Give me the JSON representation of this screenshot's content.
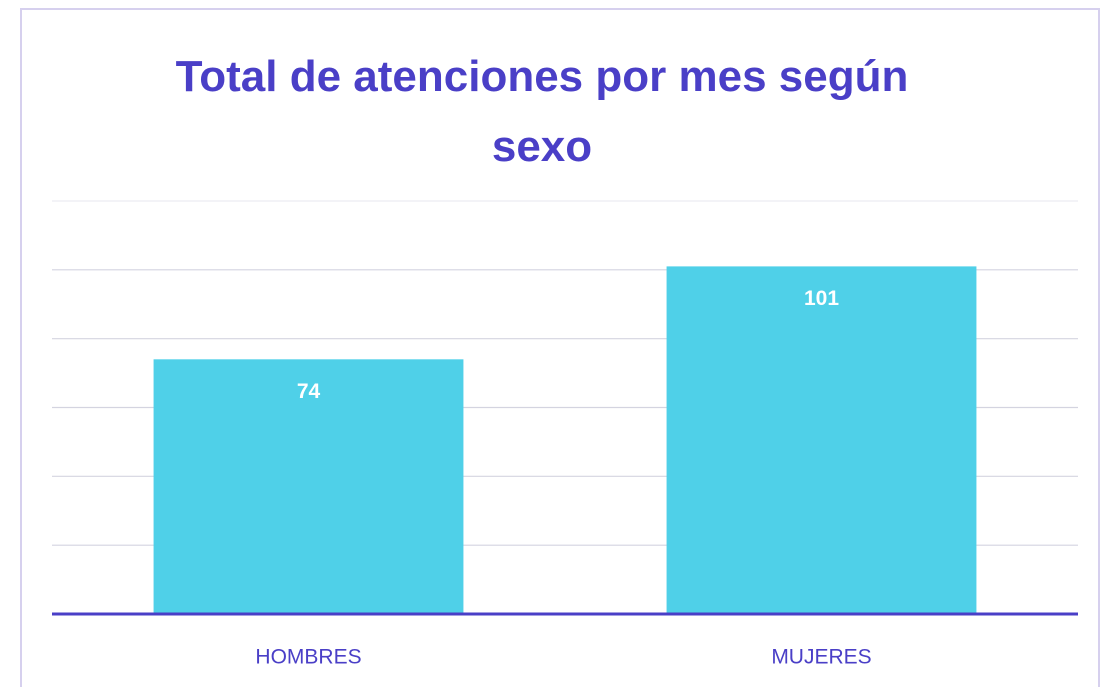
{
  "chart_data": {
    "type": "bar",
    "title": "Total de atenciones por mes según sexo",
    "categories": [
      "HOMBRES",
      "MUJERES"
    ],
    "values": [
      74,
      101
    ],
    "color": "#4fd0e8",
    "ylim": [
      0,
      120
    ],
    "yticks": [
      0,
      20,
      40,
      60,
      80,
      100,
      120
    ],
    "grid": true
  }
}
